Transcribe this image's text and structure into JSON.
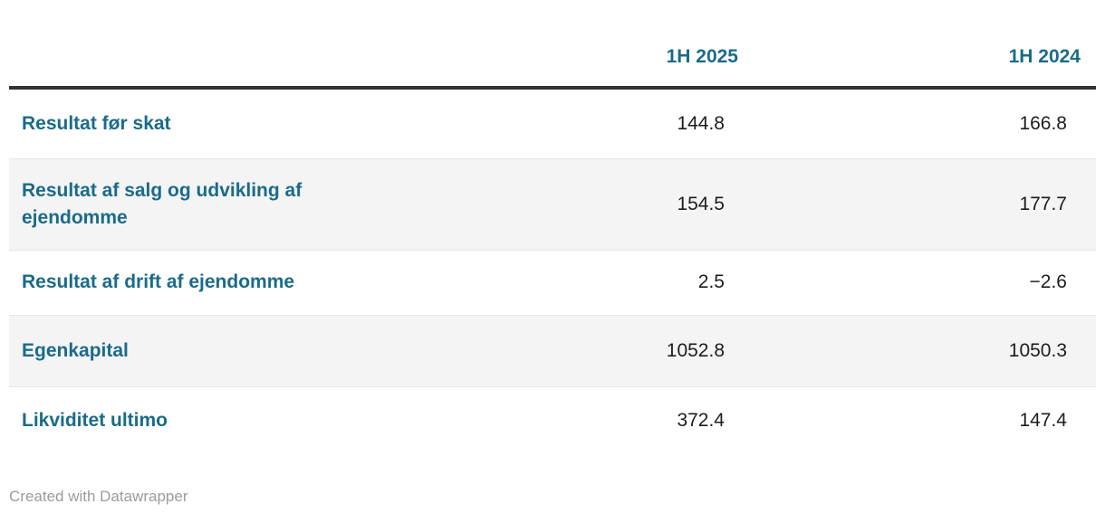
{
  "colors": {
    "accent": "#1a6b8a",
    "number_text": "#1d1d1d",
    "stripe": "#f4f4f4",
    "header_rule": "#333333",
    "row_divider": "#e7e7e7",
    "attribution_text": "#9c9c9c"
  },
  "table": {
    "columns": [
      {
        "label": ""
      },
      {
        "label": "1H 2025"
      },
      {
        "label": "1H 2024"
      }
    ],
    "rows": [
      {
        "label": "Resultat før skat",
        "values": [
          "144.8",
          "166.8"
        ]
      },
      {
        "label": "Resultat af salg og udvikling af ejendomme",
        "values": [
          "154.5",
          "177.7"
        ]
      },
      {
        "label": "Resultat af drift af ejendomme",
        "values": [
          "2.5",
          "−2.6"
        ]
      },
      {
        "label": "Egenkapital",
        "values": [
          "1052.8",
          "1050.3"
        ]
      },
      {
        "label": "Likviditet ultimo",
        "values": [
          "372.4",
          "147.4"
        ]
      }
    ]
  },
  "footer": {
    "attribution": "Created with Datawrapper"
  },
  "chart_data": {
    "type": "table",
    "categories": [
      "Resultat før skat",
      "Resultat af salg og udvikling af ejendomme",
      "Resultat af drift af ejendomme",
      "Egenkapital",
      "Likviditet ultimo"
    ],
    "series": [
      {
        "name": "1H 2025",
        "values": [
          144.8,
          154.5,
          2.5,
          1052.8,
          372.4
        ]
      },
      {
        "name": "1H 2024",
        "values": [
          166.8,
          177.7,
          -2.6,
          1050.3,
          147.4
        ]
      }
    ],
    "title": "",
    "legend_position": "none",
    "grid": false
  }
}
